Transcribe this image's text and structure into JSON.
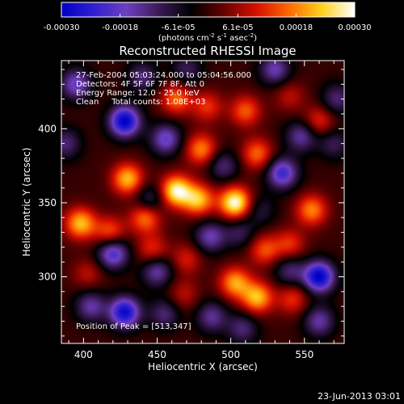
{
  "chart_data": {
    "type": "heatmap",
    "title": "Reconstructed RHESSI Image",
    "xlabel": "Heliocentric X (arcsec)",
    "ylabel": "Heliocentric Y (arcsec)",
    "xlim": [
      385,
      577
    ],
    "ylim": [
      255,
      446
    ],
    "x_ticks": [
      400,
      450,
      500,
      550
    ],
    "y_ticks": [
      300,
      350,
      400
    ],
    "colorbar": {
      "min": -0.0003,
      "max": 0.0003,
      "tick_values": [
        -0.0003,
        -0.00018,
        -6.1e-05,
        6.1e-05,
        0.00018,
        0.0003
      ],
      "tick_labels": [
        "-0.00030",
        "-0.00018",
        "-6.1e-05",
        "6.1e-05",
        "0.00018",
        "0.00030"
      ],
      "units_prefix": "(photons cm",
      "units_sup1": "-2",
      "units_mid": " s",
      "units_sup2": "-1",
      "units_mid2": " asec",
      "units_sup3": "-2",
      "units_suffix": ")"
    },
    "colormap": [
      "#0000c8",
      "#3020d0",
      "#6f3fc0",
      "#3a1a55",
      "#000000",
      "#6a0000",
      "#d81000",
      "#ff6a00",
      "#ffd21e",
      "#ffffff"
    ],
    "annotations": [
      "27-Feb-2004 05:03:24.000 to 05:04:56.000",
      "Detectors: 4F 5F 6F 7F 8F, Att 0",
      "Energy Range: 12.0 - 25.0 keV",
      "Clean     Total counts: 1.08E+03"
    ],
    "peak_text": "Position of Peak = [513,347]",
    "peak": [
      513,
      347
    ],
    "blobs": [
      {
        "x": 463,
        "y": 358,
        "v": 0.00028
      },
      {
        "x": 503,
        "y": 350,
        "v": 0.0003
      },
      {
        "x": 478,
        "y": 352,
        "v": 0.00022
      },
      {
        "x": 430,
        "y": 366,
        "v": 0.00022
      },
      {
        "x": 398,
        "y": 336,
        "v": 0.00022
      },
      {
        "x": 418,
        "y": 330,
        "v": 0.00015
      },
      {
        "x": 442,
        "y": 340,
        "v": 0.00018
      },
      {
        "x": 447,
        "y": 318,
        "v": 0.00012
      },
      {
        "x": 480,
        "y": 386,
        "v": 0.00018
      },
      {
        "x": 518,
        "y": 383,
        "v": 0.00016
      },
      {
        "x": 463,
        "y": 420,
        "v": 0.00016
      },
      {
        "x": 484,
        "y": 415,
        "v": 0.00012
      },
      {
        "x": 510,
        "y": 412,
        "v": 0.00015
      },
      {
        "x": 540,
        "y": 422,
        "v": 8e-05
      },
      {
        "x": 555,
        "y": 345,
        "v": 0.00018
      },
      {
        "x": 540,
        "y": 322,
        "v": 0.00012
      },
      {
        "x": 523,
        "y": 318,
        "v": 0.00014
      },
      {
        "x": 503,
        "y": 296,
        "v": 0.0002
      },
      {
        "x": 518,
        "y": 286,
        "v": 0.00022
      },
      {
        "x": 542,
        "y": 285,
        "v": 0.00012
      },
      {
        "x": 468,
        "y": 288,
        "v": 8e-05
      },
      {
        "x": 403,
        "y": 302,
        "v": 8e-05
      },
      {
        "x": 470,
        "y": 312,
        "v": 0.0001
      },
      {
        "x": 560,
        "y": 405,
        "v": 0.00012
      },
      {
        "x": 428,
        "y": 405,
        "v": -0.0003
      },
      {
        "x": 395,
        "y": 430,
        "v": -0.00018
      },
      {
        "x": 440,
        "y": 435,
        "v": -0.00012
      },
      {
        "x": 456,
        "y": 393,
        "v": -0.00018
      },
      {
        "x": 445,
        "y": 352,
        "v": -0.00012
      },
      {
        "x": 420,
        "y": 316,
        "v": -0.00022
      },
      {
        "x": 428,
        "y": 276,
        "v": -0.00028
      },
      {
        "x": 405,
        "y": 280,
        "v": -0.00015
      },
      {
        "x": 455,
        "y": 275,
        "v": -0.00012
      },
      {
        "x": 450,
        "y": 304,
        "v": -0.00016
      },
      {
        "x": 486,
        "y": 327,
        "v": -0.00016
      },
      {
        "x": 495,
        "y": 375,
        "v": -0.00012
      },
      {
        "x": 535,
        "y": 370,
        "v": -0.00022
      },
      {
        "x": 548,
        "y": 395,
        "v": -0.00015
      },
      {
        "x": 570,
        "y": 390,
        "v": -0.0001
      },
      {
        "x": 530,
        "y": 440,
        "v": -0.00016
      },
      {
        "x": 572,
        "y": 420,
        "v": -0.00012
      },
      {
        "x": 560,
        "y": 300,
        "v": -0.0003
      },
      {
        "x": 560,
        "y": 270,
        "v": -0.00015
      },
      {
        "x": 540,
        "y": 304,
        "v": -0.00012
      },
      {
        "x": 487,
        "y": 273,
        "v": -0.00014
      },
      {
        "x": 508,
        "y": 265,
        "v": -0.00012
      },
      {
        "x": 388,
        "y": 390,
        "v": -0.00012
      },
      {
        "x": 506,
        "y": 330,
        "v": -0.0001
      },
      {
        "x": 470,
        "y": 440,
        "v": -0.0001
      },
      {
        "x": 520,
        "y": 345,
        "v": -8e-05
      }
    ],
    "blob_sigma": 7.5
  },
  "footer": {
    "date": "23-Jun-2013 03:01"
  }
}
